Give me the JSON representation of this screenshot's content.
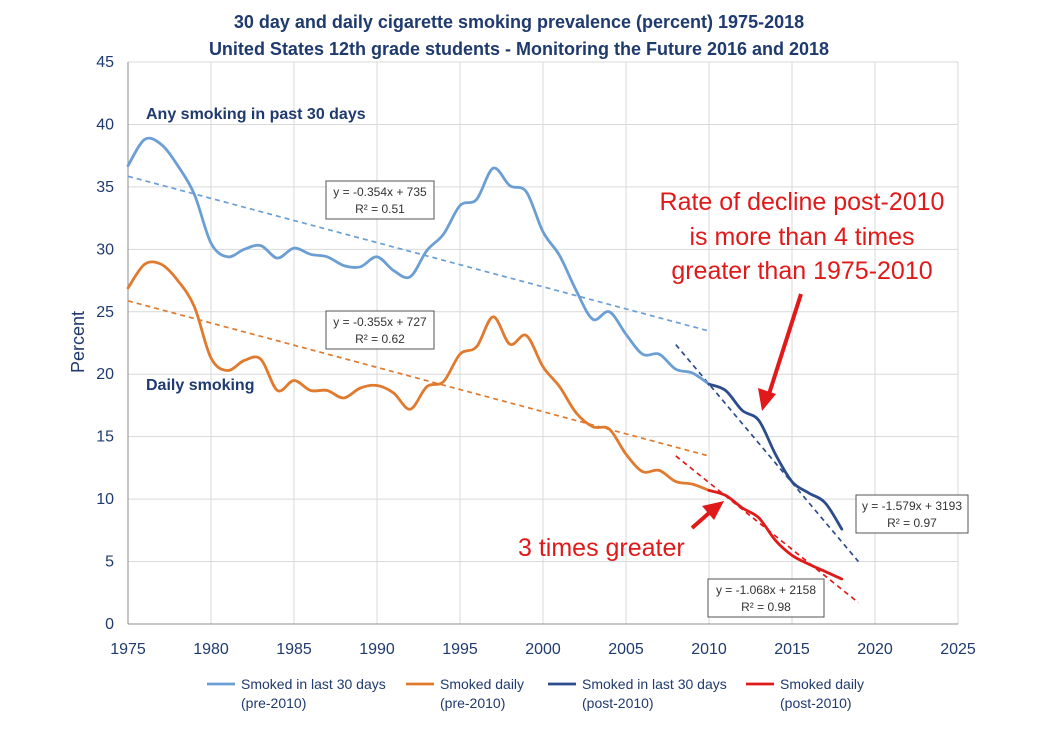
{
  "chart_data": {
    "type": "line",
    "title_lines": [
      "30 day and daily cigarette smoking prevalence (percent) 1975-2018",
      "United States 12th grade students - Monitoring the Future 2016 and 2018"
    ],
    "xlabel": "",
    "ylabel": "Percent",
    "xlim": [
      1975,
      2025
    ],
    "ylim": [
      0,
      45
    ],
    "x_ticks": [
      "1975",
      "1980",
      "1985",
      "1990",
      "1995",
      "2000",
      "2005",
      "2010",
      "2015",
      "2020",
      "2025"
    ],
    "y_ticks": [
      "0",
      "5",
      "10",
      "15",
      "20",
      "25",
      "30",
      "35",
      "40",
      "45"
    ],
    "grid": true,
    "legend_position": "bottom",
    "series": [
      {
        "name": "Smoked in last 30 days (pre-2010)",
        "legend_lines": [
          "Smoked in last 30 days",
          "(pre-2010)"
        ],
        "color": "#6b9fd4",
        "x": [
          1975,
          1976,
          1977,
          1978,
          1979,
          1980,
          1981,
          1982,
          1983,
          1984,
          1985,
          1986,
          1987,
          1988,
          1989,
          1990,
          1991,
          1992,
          1993,
          1994,
          1995,
          1996,
          1997,
          1998,
          1999,
          2000,
          2001,
          2002,
          2003,
          2004,
          2005,
          2006,
          2007,
          2008,
          2009,
          2010
        ],
        "y": [
          36.7,
          38.8,
          38.4,
          36.7,
          34.4,
          30.5,
          29.4,
          30.0,
          30.3,
          29.3,
          30.1,
          29.6,
          29.4,
          28.7,
          28.6,
          29.4,
          28.3,
          27.8,
          29.9,
          31.2,
          33.5,
          34.0,
          36.5,
          35.1,
          34.6,
          31.4,
          29.5,
          26.7,
          24.4,
          25.0,
          23.2,
          21.6,
          21.6,
          20.4,
          20.1,
          19.2
        ]
      },
      {
        "name": "Smoked daily (pre-2010)",
        "legend_lines": [
          "Smoked daily",
          "(pre-2010)"
        ],
        "color": "#e07a2e",
        "x": [
          1975,
          1976,
          1977,
          1978,
          1979,
          1980,
          1981,
          1982,
          1983,
          1984,
          1985,
          1986,
          1987,
          1988,
          1989,
          1990,
          1991,
          1992,
          1993,
          1994,
          1995,
          1996,
          1997,
          1998,
          1999,
          2000,
          2001,
          2002,
          2003,
          2004,
          2005,
          2006,
          2007,
          2008,
          2009,
          2010
        ],
        "y": [
          26.9,
          28.8,
          28.8,
          27.5,
          25.4,
          21.3,
          20.3,
          21.1,
          21.2,
          18.7,
          19.5,
          18.7,
          18.7,
          18.1,
          18.9,
          19.1,
          18.5,
          17.2,
          19.0,
          19.4,
          21.6,
          22.2,
          24.6,
          22.4,
          23.1,
          20.6,
          19.0,
          16.9,
          15.8,
          15.6,
          13.6,
          12.2,
          12.3,
          11.4,
          11.2,
          10.7
        ]
      },
      {
        "name": "Smoked in last 30 days (post-2010)",
        "legend_lines": [
          "Smoked in last 30 days",
          "(post-2010)"
        ],
        "color": "#2d4c8c",
        "x": [
          2010,
          2011,
          2012,
          2013,
          2014,
          2015,
          2016,
          2017,
          2018
        ],
        "y": [
          19.2,
          18.7,
          17.1,
          16.3,
          13.6,
          11.4,
          10.5,
          9.7,
          7.6
        ]
      },
      {
        "name": "Smoked daily (post-2010)",
        "legend_lines": [
          "Smoked daily",
          "(post-2010)"
        ],
        "color": "#e01a1a",
        "x": [
          2010,
          2011,
          2012,
          2013,
          2014,
          2015,
          2016,
          2017,
          2018
        ],
        "y": [
          10.7,
          10.3,
          9.3,
          8.5,
          6.7,
          5.5,
          4.8,
          4.2,
          3.6
        ]
      }
    ],
    "trendlines": [
      {
        "series": "Smoked in last 30 days (pre-2010)",
        "slope": -0.354,
        "intercept": 735,
        "x_range": [
          1975,
          2010
        ],
        "color": "#6b9fd4",
        "equation": "y = -0.354x + 735",
        "r2": "R² = 0.51"
      },
      {
        "series": "Smoked daily (pre-2010)",
        "slope": -0.355,
        "intercept": 727,
        "x_range": [
          1975,
          2010
        ],
        "color": "#e07a2e",
        "equation": "y = -0.355x + 727",
        "r2": "R² = 0.62"
      },
      {
        "series": "Smoked in last 30 days (post-2010)",
        "slope": -1.579,
        "intercept": 3193,
        "x_range": [
          2008,
          2019
        ],
        "color": "#2d4c8c",
        "equation": "y = -1.579x + 3193",
        "r2": "R² = 0.97"
      },
      {
        "series": "Smoked daily (post-2010)",
        "slope": -1.068,
        "intercept": 2158,
        "x_range": [
          2008,
          2019
        ],
        "color": "#e01a1a",
        "equation": "y = -1.068x + 2158",
        "r2": "R² = 0.98"
      }
    ],
    "annotations": {
      "any_smoking": "Any smoking in past 30 days",
      "daily_smoking": "Daily smoking",
      "decline_callout_lines": [
        "Rate of decline post-2010",
        "is more than 4 times",
        "greater than 1975-2010"
      ],
      "three_times": "3 times greater"
    },
    "colors": {
      "axis_text": "#1f3a6e",
      "callout": "#e01a1a",
      "grid": "#d9d9d9"
    }
  }
}
